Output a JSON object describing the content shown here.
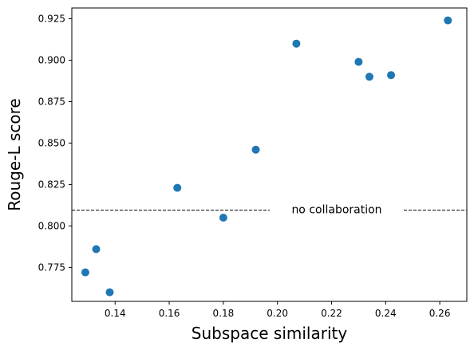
{
  "chart_data": {
    "type": "scatter",
    "xlabel": "Subspace similarity",
    "ylabel": "Rouge-L score",
    "xlim": [
      0.124,
      0.27
    ],
    "ylim": [
      0.7545,
      0.9315
    ],
    "xticks": [
      0.14,
      0.16,
      0.18,
      0.2,
      0.22,
      0.24,
      0.26
    ],
    "xtick_labels": [
      "0.14",
      "0.16",
      "0.18",
      "0.20",
      "0.22",
      "0.24",
      "0.26"
    ],
    "yticks": [
      0.775,
      0.8,
      0.825,
      0.85,
      0.875,
      0.9,
      0.925
    ],
    "ytick_labels": [
      "0.775",
      "0.800",
      "0.825",
      "0.850",
      "0.875",
      "0.900",
      "0.925"
    ],
    "grid": false,
    "point_color": "#1f77b4",
    "points": [
      {
        "x": 0.129,
        "y": 0.772
      },
      {
        "x": 0.133,
        "y": 0.786
      },
      {
        "x": 0.138,
        "y": 0.76
      },
      {
        "x": 0.163,
        "y": 0.823
      },
      {
        "x": 0.18,
        "y": 0.805
      },
      {
        "x": 0.192,
        "y": 0.846
      },
      {
        "x": 0.207,
        "y": 0.91
      },
      {
        "x": 0.23,
        "y": 0.899
      },
      {
        "x": 0.234,
        "y": 0.89
      },
      {
        "x": 0.242,
        "y": 0.891
      },
      {
        "x": 0.263,
        "y": 0.924
      }
    ],
    "reference_line": {
      "y": 0.8095,
      "label": "no collaboration",
      "style": "dashed",
      "color": "#000000"
    }
  }
}
